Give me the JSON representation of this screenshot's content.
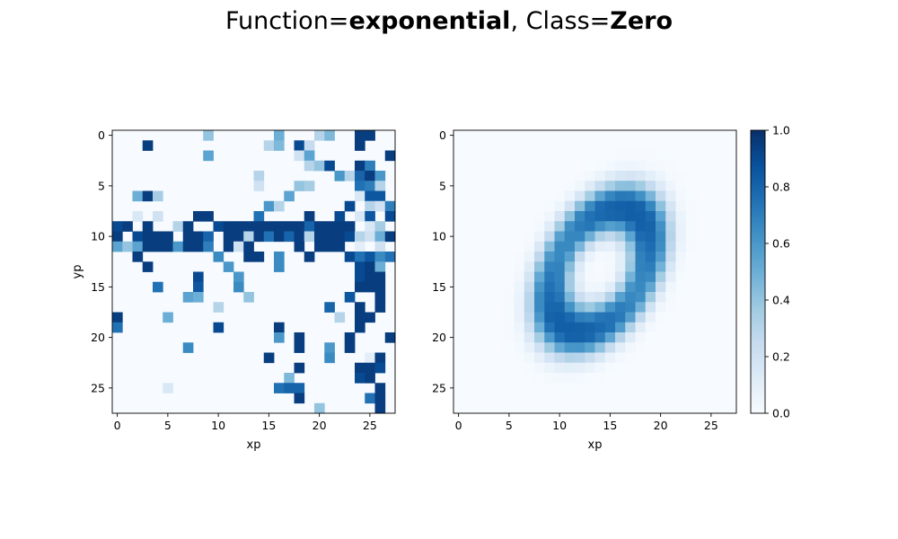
{
  "title": {
    "function_prefix": "Function=",
    "function_value": "exponential",
    "separator": ", ",
    "class_prefix": "Class=",
    "class_value": "Zero"
  },
  "chart_data": [
    {
      "type": "heatmap",
      "panel": "left",
      "xlabel": "xp",
      "ylabel": "yp",
      "grid_size": 28,
      "xlim": [
        -0.5,
        27.5
      ],
      "ylim": [
        27.5,
        -0.5
      ],
      "xticks": [
        0,
        5,
        10,
        15,
        20,
        25
      ],
      "yticks": [
        0,
        5,
        10,
        15,
        20,
        25
      ],
      "colormap": "Blues",
      "cells": [
        [
          0,
          9,
          0.4
        ],
        [
          0,
          16,
          0.5
        ],
        [
          0,
          20,
          0.3
        ],
        [
          0,
          21,
          0.45
        ],
        [
          0,
          24,
          0.95
        ],
        [
          0,
          25,
          0.95
        ],
        [
          1,
          3,
          0.95
        ],
        [
          1,
          15,
          0.3
        ],
        [
          1,
          16,
          0.45
        ],
        [
          1,
          18,
          0.9
        ],
        [
          1,
          19,
          0.25
        ],
        [
          1,
          24,
          0.95
        ],
        [
          2,
          9,
          0.55
        ],
        [
          2,
          18,
          0.2
        ],
        [
          2,
          19,
          0.55
        ],
        [
          2,
          27,
          0.95
        ],
        [
          3,
          19,
          0.3
        ],
        [
          3,
          20,
          0.4
        ],
        [
          3,
          21,
          0.9
        ],
        [
          3,
          24,
          0.95
        ],
        [
          3,
          25,
          0.7
        ],
        [
          4,
          14,
          0.3
        ],
        [
          4,
          22,
          0.6
        ],
        [
          4,
          23,
          0.3
        ],
        [
          4,
          24,
          0.8
        ],
        [
          4,
          25,
          0.95
        ],
        [
          4,
          26,
          0.6
        ],
        [
          5,
          14,
          0.2
        ],
        [
          5,
          18,
          0.4
        ],
        [
          5,
          19,
          0.35
        ],
        [
          5,
          24,
          0.75
        ],
        [
          5,
          25,
          0.7
        ],
        [
          5,
          26,
          0.3
        ],
        [
          6,
          2,
          0.5
        ],
        [
          6,
          3,
          0.95
        ],
        [
          6,
          4,
          0.35
        ],
        [
          6,
          17,
          0.55
        ],
        [
          6,
          24,
          0.15
        ],
        [
          6,
          25,
          0.85
        ],
        [
          6,
          26,
          0.85
        ],
        [
          7,
          15,
          0.6
        ],
        [
          7,
          16,
          0.3
        ],
        [
          7,
          23,
          0.9
        ],
        [
          7,
          25,
          0.3
        ],
        [
          7,
          26,
          0.2
        ],
        [
          7,
          27,
          0.7
        ],
        [
          8,
          2,
          0.15
        ],
        [
          8,
          4,
          0.2
        ],
        [
          8,
          8,
          0.95
        ],
        [
          8,
          9,
          0.95
        ],
        [
          8,
          14,
          0.75
        ],
        [
          8,
          19,
          0.95
        ],
        [
          8,
          22,
          0.9
        ],
        [
          8,
          24,
          0.15
        ],
        [
          8,
          25,
          0.85
        ],
        [
          8,
          27,
          0.9
        ],
        [
          9,
          0,
          0.9
        ],
        [
          9,
          1,
          0.95
        ],
        [
          9,
          3,
          0.95
        ],
        [
          9,
          6,
          0.3
        ],
        [
          9,
          7,
          0.95
        ],
        [
          9,
          10,
          0.9
        ],
        [
          9,
          11,
          0.95
        ],
        [
          9,
          12,
          0.95
        ],
        [
          9,
          13,
          0.95
        ],
        [
          9,
          14,
          0.95
        ],
        [
          9,
          15,
          0.95
        ],
        [
          9,
          16,
          0.95
        ],
        [
          9,
          17,
          0.95
        ],
        [
          9,
          18,
          0.95
        ],
        [
          9,
          19,
          0.8
        ],
        [
          9,
          20,
          0.95
        ],
        [
          9,
          21,
          0.95
        ],
        [
          9,
          22,
          0.95
        ],
        [
          9,
          23,
          0.95
        ],
        [
          9,
          25,
          0.15
        ],
        [
          9,
          26,
          0.35
        ],
        [
          10,
          0,
          0.95
        ],
        [
          10,
          2,
          0.9
        ],
        [
          10,
          3,
          0.95
        ],
        [
          10,
          4,
          0.95
        ],
        [
          10,
          5,
          0.95
        ],
        [
          10,
          7,
          0.95
        ],
        [
          10,
          8,
          0.95
        ],
        [
          10,
          9,
          0.8
        ],
        [
          10,
          11,
          0.95
        ],
        [
          10,
          12,
          0.95
        ],
        [
          10,
          13,
          0.3
        ],
        [
          10,
          14,
          0.95
        ],
        [
          10,
          15,
          0.75
        ],
        [
          10,
          16,
          0.95
        ],
        [
          10,
          17,
          0.8
        ],
        [
          10,
          18,
          0.95
        ],
        [
          10,
          19,
          0.3
        ],
        [
          10,
          20,
          0.95
        ],
        [
          10,
          21,
          0.95
        ],
        [
          10,
          22,
          0.95
        ],
        [
          10,
          23,
          0.9
        ],
        [
          10,
          24,
          0.3
        ],
        [
          10,
          25,
          0.2
        ],
        [
          10,
          26,
          0.5
        ],
        [
          10,
          27,
          0.95
        ],
        [
          11,
          0,
          0.55
        ],
        [
          11,
          1,
          0.4
        ],
        [
          11,
          2,
          0.55
        ],
        [
          11,
          3,
          0.95
        ],
        [
          11,
          4,
          0.95
        ],
        [
          11,
          5,
          0.95
        ],
        [
          11,
          6,
          0.6
        ],
        [
          11,
          7,
          0.95
        ],
        [
          11,
          8,
          0.95
        ],
        [
          11,
          9,
          0.7
        ],
        [
          11,
          11,
          0.95
        ],
        [
          11,
          12,
          0.2
        ],
        [
          11,
          13,
          0.95
        ],
        [
          11,
          18,
          0.95
        ],
        [
          11,
          20,
          0.95
        ],
        [
          11,
          21,
          0.95
        ],
        [
          11,
          22,
          0.95
        ],
        [
          11,
          24,
          0.1
        ],
        [
          11,
          26,
          0.2
        ],
        [
          12,
          2,
          0.95
        ],
        [
          12,
          10,
          0.65
        ],
        [
          12,
          13,
          0.95
        ],
        [
          12,
          14,
          0.95
        ],
        [
          12,
          16,
          0.65
        ],
        [
          12,
          19,
          0.95
        ],
        [
          12,
          23,
          0.9
        ],
        [
          12,
          24,
          0.75
        ],
        [
          12,
          25,
          0.85
        ],
        [
          12,
          26,
          0.65
        ],
        [
          12,
          27,
          0.75
        ],
        [
          13,
          3,
          0.95
        ],
        [
          13,
          11,
          0.6
        ],
        [
          13,
          16,
          0.65
        ],
        [
          13,
          24,
          0.9
        ],
        [
          13,
          25,
          0.95
        ],
        [
          13,
          26,
          0.5
        ],
        [
          14,
          8,
          0.9
        ],
        [
          14,
          12,
          0.6
        ],
        [
          14,
          24,
          0.9
        ],
        [
          14,
          25,
          0.95
        ],
        [
          14,
          26,
          0.95
        ],
        [
          15,
          4,
          0.75
        ],
        [
          15,
          8,
          0.85
        ],
        [
          15,
          12,
          0.65
        ],
        [
          15,
          24,
          0.95
        ],
        [
          15,
          25,
          0.95
        ],
        [
          15,
          26,
          0.95
        ],
        [
          16,
          7,
          0.55
        ],
        [
          16,
          8,
          0.5
        ],
        [
          16,
          13,
          0.4
        ],
        [
          16,
          23,
          0.85
        ],
        [
          16,
          26,
          0.95
        ],
        [
          17,
          10,
          0.3
        ],
        [
          17,
          21,
          0.8
        ],
        [
          17,
          24,
          0.95
        ],
        [
          17,
          26,
          0.95
        ],
        [
          18,
          0,
          0.95
        ],
        [
          18,
          5,
          0.5
        ],
        [
          18,
          22,
          0.3
        ],
        [
          18,
          24,
          0.95
        ],
        [
          18,
          25,
          0.95
        ],
        [
          19,
          0,
          0.75
        ],
        [
          19,
          10,
          0.9
        ],
        [
          19,
          16,
          0.95
        ],
        [
          19,
          24,
          0.95
        ],
        [
          20,
          16,
          0.6
        ],
        [
          20,
          18,
          0.95
        ],
        [
          20,
          23,
          0.95
        ],
        [
          20,
          27,
          0.95
        ],
        [
          21,
          7,
          0.65
        ],
        [
          21,
          18,
          0.95
        ],
        [
          21,
          21,
          0.6
        ],
        [
          21,
          23,
          0.95
        ],
        [
          22,
          15,
          0.95
        ],
        [
          22,
          21,
          0.65
        ],
        [
          22,
          25,
          0.1
        ],
        [
          22,
          26,
          0.95
        ],
        [
          23,
          18,
          0.95
        ],
        [
          23,
          24,
          0.95
        ],
        [
          23,
          25,
          0.95
        ],
        [
          23,
          26,
          0.9
        ],
        [
          24,
          17,
          0.45
        ],
        [
          24,
          24,
          0.9
        ],
        [
          24,
          25,
          0.95
        ],
        [
          25,
          5,
          0.15
        ],
        [
          25,
          16,
          0.75
        ],
        [
          25,
          17,
          0.8
        ],
        [
          25,
          18,
          0.8
        ],
        [
          25,
          26,
          0.95
        ],
        [
          26,
          18,
          0.95
        ],
        [
          26,
          25,
          0.75
        ],
        [
          26,
          26,
          0.95
        ],
        [
          27,
          20,
          0.4
        ],
        [
          27,
          26,
          0.95
        ]
      ]
    },
    {
      "type": "heatmap",
      "panel": "right",
      "xlabel": "xp",
      "ylabel": "",
      "grid_size": 28,
      "xlim": [
        -0.5,
        27.5
      ],
      "ylim": [
        27.5,
        -0.5
      ],
      "xticks": [
        0,
        5,
        10,
        15,
        20,
        25
      ],
      "yticks": [
        0,
        5,
        10,
        15,
        20,
        25
      ],
      "colormap": "Blues",
      "shape": {
        "kind": "ring",
        "center_x": 14.0,
        "center_y": 13.3,
        "semi_axis_major": 6.6,
        "semi_axis_minor": 4.2,
        "tilt_degrees": -60,
        "ring_half_width": 1.0,
        "peak_value": 0.82,
        "blur": 1.3
      },
      "colorbar": {
        "vmin": 0.0,
        "vmax": 1.0,
        "ticks": [
          "0.0",
          "0.2",
          "0.4",
          "0.6",
          "0.8",
          "1.0"
        ]
      }
    }
  ],
  "colors": {
    "blues_stops": [
      "#f7fbff",
      "#deebf7",
      "#c6dbef",
      "#9ecae1",
      "#6baed6",
      "#4292c6",
      "#2171b5",
      "#08519c",
      "#08306b"
    ]
  }
}
